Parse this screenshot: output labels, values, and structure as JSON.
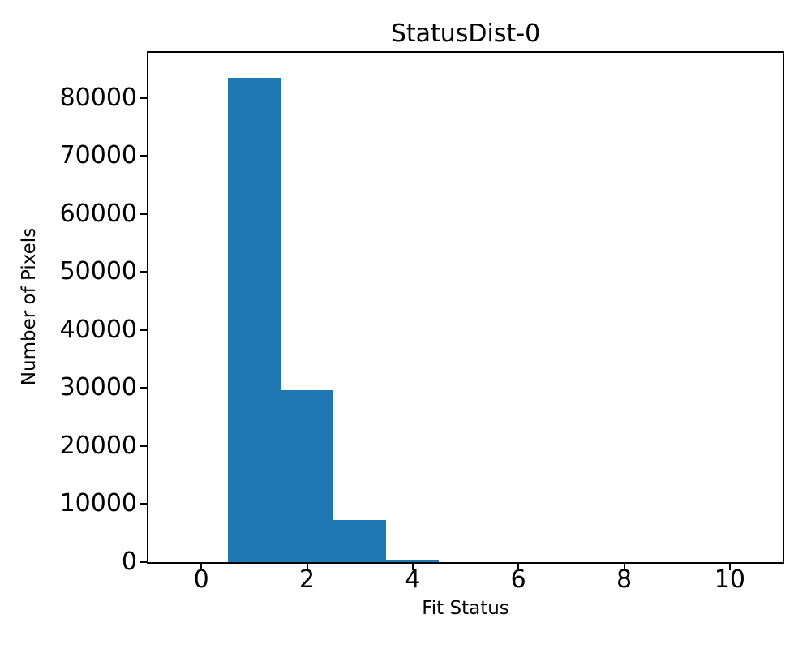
{
  "chart_data": {
    "type": "bar",
    "subtype": "histogram",
    "title": "StatusDist-0",
    "xlabel": "Fit Status",
    "ylabel": "Number of Pixels",
    "bin_centers": [
      0,
      1,
      2,
      3,
      4,
      5,
      6,
      7,
      8,
      9,
      10
    ],
    "bin_width": 1,
    "values": [
      0,
      83400,
      29600,
      7300,
      400,
      0,
      0,
      0,
      0,
      0,
      0
    ],
    "xticks": [
      0,
      2,
      4,
      6,
      8,
      10
    ],
    "yticks": [
      0,
      10000,
      20000,
      30000,
      40000,
      50000,
      60000,
      70000,
      80000
    ],
    "xlim": [
      -1,
      11
    ],
    "ylim": [
      0,
      87800
    ],
    "bar_color": "#1f77b4",
    "axis_color": "#000000",
    "background_color": "#ffffff",
    "grid": false,
    "legend": null
  }
}
